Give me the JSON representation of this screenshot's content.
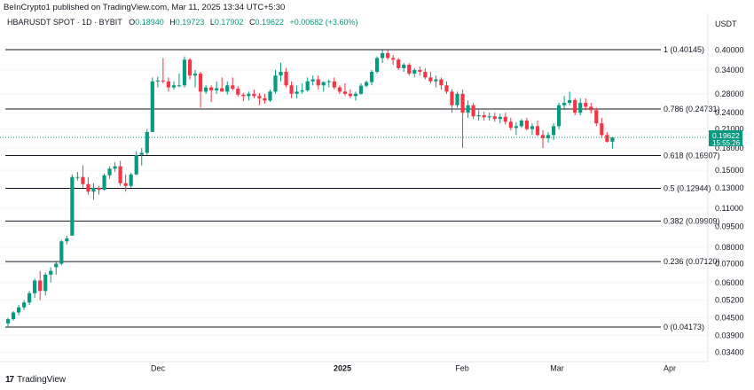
{
  "header": {
    "attribution": "BeInCrypto1 published on TradingView.com, Mar 11, 2025 13:34 UTC+5:30"
  },
  "symbol_bar": {
    "symbol": "HBARUSDT SPOT · 1D · BYBIT",
    "open_label": "O",
    "open": "0.18940",
    "high_label": "H",
    "high": "0.19723",
    "low_label": "L",
    "low": "0.17902",
    "close_label": "C",
    "close": "0.19622",
    "change": "+0.00682 (+3.60%)"
  },
  "currency": "USDT",
  "footer": {
    "brand": "TradingView",
    "logo_icon": "tradingview-logo-icon"
  },
  "colors": {
    "up": "#089981",
    "down": "#f23645",
    "level_line": "#131722",
    "price_tag": "#089981"
  },
  "chart_data": {
    "type": "candlestick",
    "y_scale": "log",
    "y_ticks": [
      "0.40000",
      "0.34000",
      "0.28000",
      "0.24000",
      "0.21000",
      "0.18000",
      "0.15000",
      "0.13000",
      "0.11000",
      "0.09500",
      "0.08000",
      "0.07000",
      "0.06000",
      "0.05200",
      "0.04500",
      "0.03900",
      "0.03400"
    ],
    "x_ticks": [
      "Dec",
      "2025",
      "Feb",
      "Mar",
      "Apr"
    ],
    "fib_levels": [
      {
        "label": "1 (0.40145)",
        "value": 0.40145
      },
      {
        "label": "0.786 (0.24731)",
        "value": 0.24731
      },
      {
        "label": "0.618 (0.16907)",
        "value": 0.16907
      },
      {
        "label": "0.5 (0.12944)",
        "value": 0.12944
      },
      {
        "label": "0.382 (0.09909)",
        "value": 0.09909
      },
      {
        "label": "0.236 (0.07120)",
        "value": 0.0712
      },
      {
        "label": "0 (0.04173)",
        "value": 0.04173
      }
    ],
    "current_price": {
      "value": 0.19622,
      "label": "0.19622",
      "countdown": "15:55:26"
    },
    "candles": [
      [
        0.043,
        0.045,
        0.0417,
        0.0445
      ],
      [
        0.0445,
        0.0475,
        0.044,
        0.047
      ],
      [
        0.047,
        0.05,
        0.046,
        0.049
      ],
      [
        0.049,
        0.052,
        0.048,
        0.051
      ],
      [
        0.051,
        0.056,
        0.05,
        0.055
      ],
      [
        0.055,
        0.062,
        0.053,
        0.061
      ],
      [
        0.061,
        0.066,
        0.052,
        0.056
      ],
      [
        0.056,
        0.065,
        0.054,
        0.064
      ],
      [
        0.064,
        0.068,
        0.06,
        0.066
      ],
      [
        0.068,
        0.071,
        0.064,
        0.07
      ],
      [
        0.07,
        0.085,
        0.069,
        0.084
      ],
      [
        0.084,
        0.088,
        0.082,
        0.086
      ],
      [
        0.088,
        0.145,
        0.088,
        0.142
      ],
      [
        0.142,
        0.148,
        0.138,
        0.142
      ],
      [
        0.142,
        0.156,
        0.13,
        0.134
      ],
      [
        0.134,
        0.142,
        0.123,
        0.126
      ],
      [
        0.126,
        0.135,
        0.118,
        0.13
      ],
      [
        0.13,
        0.132,
        0.123,
        0.128
      ],
      [
        0.128,
        0.146,
        0.127,
        0.144
      ],
      [
        0.144,
        0.155,
        0.14,
        0.152
      ],
      [
        0.152,
        0.16,
        0.148,
        0.155
      ],
      [
        0.155,
        0.162,
        0.132,
        0.135
      ],
      [
        0.135,
        0.145,
        0.126,
        0.132
      ],
      [
        0.132,
        0.147,
        0.13,
        0.145
      ],
      [
        0.145,
        0.175,
        0.144,
        0.17
      ],
      [
        0.17,
        0.18,
        0.156,
        0.173
      ],
      [
        0.173,
        0.21,
        0.17,
        0.205
      ],
      [
        0.205,
        0.32,
        0.205,
        0.31
      ],
      [
        0.31,
        0.322,
        0.295,
        0.312
      ],
      [
        0.312,
        0.375,
        0.305,
        0.31
      ],
      [
        0.31,
        0.32,
        0.285,
        0.295
      ],
      [
        0.295,
        0.31,
        0.29,
        0.3
      ],
      [
        0.3,
        0.33,
        0.295,
        0.3
      ],
      [
        0.3,
        0.38,
        0.295,
        0.37
      ],
      [
        0.37,
        0.375,
        0.315,
        0.325
      ],
      [
        0.325,
        0.34,
        0.295,
        0.33
      ],
      [
        0.33,
        0.335,
        0.25,
        0.285
      ],
      [
        0.285,
        0.3,
        0.28,
        0.295
      ],
      [
        0.295,
        0.3,
        0.262,
        0.288
      ],
      [
        0.288,
        0.31,
        0.28,
        0.293
      ],
      [
        0.293,
        0.32,
        0.285,
        0.285
      ],
      [
        0.285,
        0.31,
        0.278,
        0.3
      ],
      [
        0.3,
        0.32,
        0.288,
        0.292
      ],
      [
        0.292,
        0.298,
        0.274,
        0.278
      ],
      [
        0.278,
        0.282,
        0.264,
        0.275
      ],
      [
        0.275,
        0.285,
        0.265,
        0.28
      ],
      [
        0.28,
        0.29,
        0.27,
        0.275
      ],
      [
        0.275,
        0.282,
        0.255,
        0.27
      ],
      [
        0.27,
        0.28,
        0.258,
        0.265
      ],
      [
        0.265,
        0.29,
        0.262,
        0.285
      ],
      [
        0.285,
        0.34,
        0.28,
        0.325
      ],
      [
        0.325,
        0.36,
        0.31,
        0.335
      ],
      [
        0.335,
        0.345,
        0.295,
        0.3
      ],
      [
        0.3,
        0.31,
        0.27,
        0.28
      ],
      [
        0.28,
        0.3,
        0.27,
        0.285
      ],
      [
        0.285,
        0.305,
        0.28,
        0.288
      ],
      [
        0.288,
        0.32,
        0.285,
        0.31
      ],
      [
        0.31,
        0.325,
        0.3,
        0.315
      ],
      [
        0.315,
        0.325,
        0.29,
        0.3
      ],
      [
        0.3,
        0.31,
        0.285,
        0.308
      ],
      [
        0.308,
        0.315,
        0.295,
        0.31
      ],
      [
        0.31,
        0.32,
        0.29,
        0.295
      ],
      [
        0.295,
        0.3,
        0.28,
        0.285
      ],
      [
        0.285,
        0.305,
        0.275,
        0.28
      ],
      [
        0.28,
        0.29,
        0.27,
        0.275
      ],
      [
        0.275,
        0.285,
        0.265,
        0.28
      ],
      [
        0.28,
        0.305,
        0.278,
        0.299
      ],
      [
        0.299,
        0.312,
        0.295,
        0.308
      ],
      [
        0.308,
        0.34,
        0.3,
        0.335
      ],
      [
        0.335,
        0.38,
        0.33,
        0.375
      ],
      [
        0.375,
        0.4,
        0.36,
        0.39
      ],
      [
        0.39,
        0.401,
        0.37,
        0.375
      ],
      [
        0.375,
        0.385,
        0.355,
        0.37
      ],
      [
        0.37,
        0.375,
        0.34,
        0.345
      ],
      [
        0.345,
        0.36,
        0.335,
        0.355
      ],
      [
        0.355,
        0.36,
        0.325,
        0.33
      ],
      [
        0.33,
        0.345,
        0.32,
        0.34
      ],
      [
        0.34,
        0.35,
        0.325,
        0.335
      ],
      [
        0.335,
        0.345,
        0.315,
        0.32
      ],
      [
        0.32,
        0.335,
        0.305,
        0.31
      ],
      [
        0.31,
        0.325,
        0.295,
        0.315
      ],
      [
        0.315,
        0.32,
        0.29,
        0.3
      ],
      [
        0.3,
        0.31,
        0.28,
        0.285
      ],
      [
        0.285,
        0.29,
        0.24,
        0.255
      ],
      [
        0.255,
        0.285,
        0.25,
        0.28
      ],
      [
        0.28,
        0.29,
        0.18,
        0.24
      ],
      [
        0.24,
        0.265,
        0.23,
        0.255
      ],
      [
        0.255,
        0.26,
        0.228,
        0.233
      ],
      [
        0.233,
        0.245,
        0.225,
        0.235
      ],
      [
        0.235,
        0.242,
        0.225,
        0.231
      ],
      [
        0.231,
        0.24,
        0.225,
        0.233
      ],
      [
        0.233,
        0.24,
        0.223,
        0.228
      ],
      [
        0.228,
        0.238,
        0.22,
        0.232
      ],
      [
        0.232,
        0.24,
        0.218,
        0.223
      ],
      [
        0.223,
        0.23,
        0.208,
        0.212
      ],
      [
        0.212,
        0.222,
        0.2,
        0.215
      ],
      [
        0.215,
        0.228,
        0.212,
        0.225
      ],
      [
        0.225,
        0.23,
        0.208,
        0.21
      ],
      [
        0.21,
        0.22,
        0.2,
        0.215
      ],
      [
        0.215,
        0.225,
        0.198,
        0.2
      ],
      [
        0.2,
        0.208,
        0.18,
        0.195
      ],
      [
        0.195,
        0.205,
        0.188,
        0.2
      ],
      [
        0.2,
        0.22,
        0.192,
        0.215
      ],
      [
        0.215,
        0.26,
        0.21,
        0.255
      ],
      [
        0.255,
        0.275,
        0.245,
        0.26
      ],
      [
        0.26,
        0.285,
        0.255,
        0.266
      ],
      [
        0.266,
        0.27,
        0.235,
        0.24
      ],
      [
        0.24,
        0.27,
        0.235,
        0.26
      ],
      [
        0.26,
        0.27,
        0.245,
        0.252
      ],
      [
        0.252,
        0.26,
        0.238,
        0.245
      ],
      [
        0.245,
        0.25,
        0.215,
        0.22
      ],
      [
        0.22,
        0.23,
        0.195,
        0.2
      ],
      [
        0.2,
        0.205,
        0.188,
        0.1894
      ],
      [
        0.1894,
        0.1972,
        0.179,
        0.1962
      ]
    ]
  }
}
